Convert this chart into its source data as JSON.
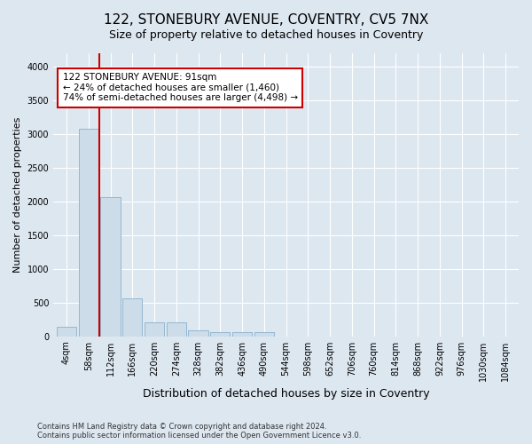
{
  "title": "122, STONEBURY AVENUE, COVENTRY, CV5 7NX",
  "subtitle": "Size of property relative to detached houses in Coventry",
  "xlabel": "Distribution of detached houses by size in Coventry",
  "ylabel": "Number of detached properties",
  "footer_line1": "Contains HM Land Registry data © Crown copyright and database right 2024.",
  "footer_line2": "Contains public sector information licensed under the Open Government Licence v3.0.",
  "categories": [
    "4sqm",
    "58sqm",
    "112sqm",
    "166sqm",
    "220sqm",
    "274sqm",
    "328sqm",
    "382sqm",
    "436sqm",
    "490sqm",
    "544sqm",
    "598sqm",
    "652sqm",
    "706sqm",
    "760sqm",
    "814sqm",
    "868sqm",
    "922sqm",
    "976sqm",
    "1030sqm",
    "1084sqm"
  ],
  "bar_values": [
    140,
    3080,
    2060,
    560,
    210,
    210,
    80,
    65,
    55,
    55,
    0,
    0,
    0,
    0,
    0,
    0,
    0,
    0,
    0,
    0,
    0
  ],
  "bar_color": "#ccdce8",
  "bar_edge_color": "#8ab0cc",
  "red_line_x": 1.5,
  "annotation_line1": "122 STONEBURY AVENUE: 91sqm",
  "annotation_line2": "← 24% of detached houses are smaller (1,460)",
  "annotation_line3": "74% of semi-detached houses are larger (4,498) →",
  "annotation_box_facecolor": "#ffffff",
  "annotation_box_edgecolor": "#cc0000",
  "ylim": [
    0,
    4200
  ],
  "yticks": [
    0,
    500,
    1000,
    1500,
    2000,
    2500,
    3000,
    3500,
    4000
  ],
  "bg_color": "#dde7f0",
  "plot_bg_color": "#dde7f0",
  "grid_color": "#ffffff",
  "title_fontsize": 11,
  "subtitle_fontsize": 9,
  "axis_label_fontsize": 8,
  "tick_fontsize": 7,
  "red_line_color": "#cc0000",
  "footer_fontsize": 6
}
